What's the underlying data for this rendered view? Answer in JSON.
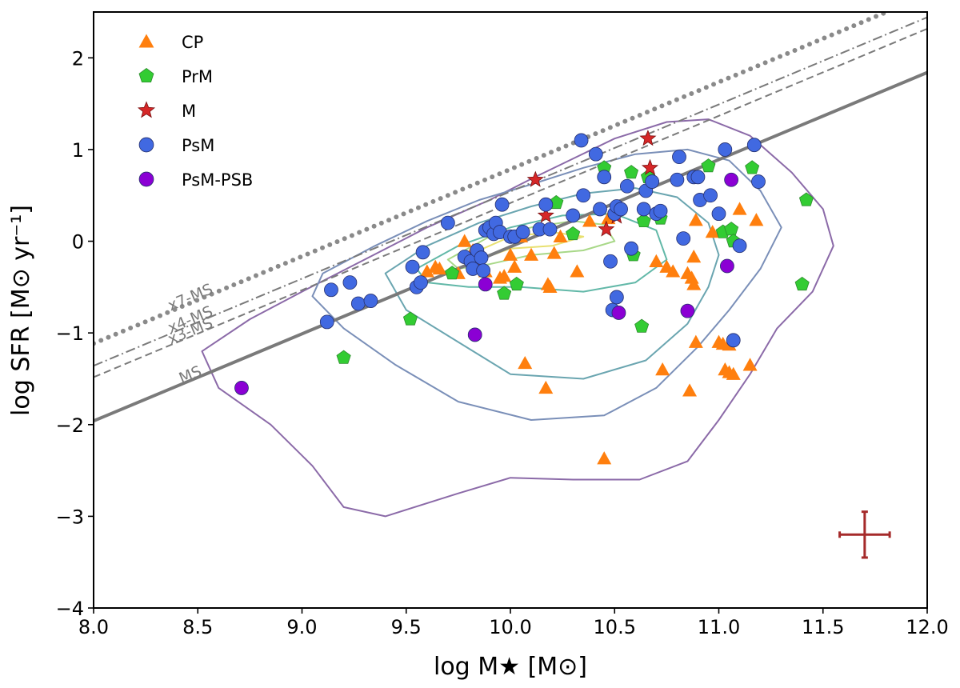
{
  "chart_data": {
    "type": "scatter",
    "xlabel": "log M★ [M⊙]",
    "ylabel": "log SFR [M⊙ yr⁻¹]",
    "xlim": [
      8.0,
      12.0
    ],
    "ylim": [
      -4.0,
      2.5
    ],
    "xticks": [
      8.0,
      8.5,
      9.0,
      9.5,
      10.0,
      10.5,
      11.0,
      11.5,
      12.0
    ],
    "xtick_labels": [
      "8.0",
      "8.5",
      "9.0",
      "9.5",
      "10.0",
      "10.5",
      "11.0",
      "11.5",
      "12.0"
    ],
    "yticks": [
      2,
      1,
      0,
      -1,
      -2,
      -3,
      -4
    ],
    "ytick_labels": [
      "2",
      "1",
      "0",
      "−1",
      "−2",
      "−3",
      "−4"
    ],
    "grid": false,
    "legend_position": "top-left",
    "reference_lines": [
      {
        "name": "MS",
        "label": "MS",
        "offset": 0.0,
        "style": "solid"
      },
      {
        "name": "x3-MS",
        "label": "x3-MS",
        "offset": 0.477,
        "style": "dashed"
      },
      {
        "name": "x4-MS",
        "label": "x4-MS",
        "offset": 0.602,
        "style": "dashdot"
      },
      {
        "name": "x7-MS",
        "label": "x7-MS",
        "offset": 0.845,
        "style": "dotted"
      }
    ],
    "ms_relation": {
      "slope": 0.95,
      "intercept": -9.56,
      "x_start": 8.0,
      "x_end": 12.0
    },
    "error_bar": {
      "x": 11.7,
      "y": -3.2,
      "xerr": 0.12,
      "yerr": 0.25,
      "color": "#a52a2a"
    },
    "contours": [
      {
        "level": 1,
        "color": "#8b6aa8",
        "points": [
          [
            8.52,
            -1.2
          ],
          [
            8.75,
            -0.85
          ],
          [
            9.0,
            -0.55
          ],
          [
            9.3,
            -0.2
          ],
          [
            9.6,
            0.15
          ],
          [
            9.9,
            0.45
          ],
          [
            10.1,
            0.68
          ],
          [
            10.3,
            0.9
          ],
          [
            10.5,
            1.12
          ],
          [
            10.75,
            1.3
          ],
          [
            10.95,
            1.33
          ],
          [
            11.15,
            1.15
          ],
          [
            11.35,
            0.75
          ],
          [
            11.5,
            0.35
          ],
          [
            11.55,
            -0.05
          ],
          [
            11.45,
            -0.55
          ],
          [
            11.28,
            -0.95
          ],
          [
            11.15,
            -1.45
          ],
          [
            11.0,
            -1.95
          ],
          [
            10.85,
            -2.4
          ],
          [
            10.62,
            -2.6
          ],
          [
            10.3,
            -2.6
          ],
          [
            10.0,
            -2.58
          ],
          [
            9.75,
            -2.75
          ],
          [
            9.4,
            -3.0
          ],
          [
            9.2,
            -2.9
          ],
          [
            9.05,
            -2.45
          ],
          [
            8.85,
            -2.0
          ],
          [
            8.6,
            -1.6
          ]
        ]
      },
      {
        "level": 2,
        "color": "#7a8fb8",
        "points": [
          [
            9.1,
            -0.35
          ],
          [
            9.35,
            -0.05
          ],
          [
            9.6,
            0.22
          ],
          [
            9.85,
            0.45
          ],
          [
            10.1,
            0.62
          ],
          [
            10.35,
            0.8
          ],
          [
            10.6,
            0.95
          ],
          [
            10.85,
            1.0
          ],
          [
            11.05,
            0.88
          ],
          [
            11.2,
            0.55
          ],
          [
            11.3,
            0.15
          ],
          [
            11.2,
            -0.3
          ],
          [
            11.05,
            -0.75
          ],
          [
            10.9,
            -1.15
          ],
          [
            10.7,
            -1.6
          ],
          [
            10.45,
            -1.9
          ],
          [
            10.1,
            -1.95
          ],
          [
            9.75,
            -1.75
          ],
          [
            9.45,
            -1.35
          ],
          [
            9.2,
            -0.95
          ],
          [
            9.05,
            -0.6
          ]
        ]
      },
      {
        "level": 3,
        "color": "#6aa5b0",
        "points": [
          [
            9.4,
            -0.35
          ],
          [
            9.6,
            -0.05
          ],
          [
            9.85,
            0.2
          ],
          [
            10.1,
            0.38
          ],
          [
            10.35,
            0.52
          ],
          [
            10.6,
            0.58
          ],
          [
            10.8,
            0.48
          ],
          [
            10.95,
            0.2
          ],
          [
            11.0,
            -0.15
          ],
          [
            10.95,
            -0.5
          ],
          [
            10.85,
            -0.9
          ],
          [
            10.65,
            -1.3
          ],
          [
            10.35,
            -1.5
          ],
          [
            10.0,
            -1.45
          ],
          [
            9.75,
            -1.1
          ],
          [
            9.5,
            -0.75
          ]
        ]
      },
      {
        "level": 4,
        "color": "#62b8a8",
        "points": [
          [
            9.55,
            -0.3
          ],
          [
            9.75,
            -0.05
          ],
          [
            10.0,
            0.15
          ],
          [
            10.25,
            0.28
          ],
          [
            10.5,
            0.3
          ],
          [
            10.7,
            0.12
          ],
          [
            10.75,
            -0.2
          ],
          [
            10.6,
            -0.45
          ],
          [
            10.35,
            -0.55
          ],
          [
            10.05,
            -0.5
          ],
          [
            9.8,
            -0.5
          ],
          [
            9.6,
            -0.45
          ]
        ]
      },
      {
        "level": 5,
        "color": "#a8d888",
        "points": [
          [
            9.7,
            -0.2
          ],
          [
            9.9,
            0.05
          ],
          [
            10.1,
            0.15
          ],
          [
            10.3,
            0.22
          ],
          [
            10.45,
            0.18
          ],
          [
            10.5,
            0.0
          ],
          [
            10.35,
            -0.1
          ],
          [
            10.1,
            -0.15
          ],
          [
            9.9,
            -0.25
          ],
          [
            9.75,
            -0.3
          ]
        ]
      },
      {
        "level": 6,
        "color": "#e8e070",
        "points": [
          [
            9.8,
            -0.15
          ],
          [
            10.0,
            0.05
          ],
          [
            10.2,
            0.1
          ],
          [
            10.35,
            0.05
          ],
          [
            10.2,
            -0.05
          ],
          [
            10.0,
            -0.08
          ],
          [
            9.85,
            -0.2
          ]
        ]
      }
    ],
    "series": [
      {
        "name": "CP",
        "label": "CP",
        "marker": "triangle",
        "color": "#ff7f0e",
        "points": [
          [
            9.6,
            -0.33
          ],
          [
            9.64,
            -0.28
          ],
          [
            9.66,
            -0.3
          ],
          [
            9.75,
            -0.35
          ],
          [
            9.78,
            0.0
          ],
          [
            9.82,
            -0.1
          ],
          [
            9.85,
            -0.22
          ],
          [
            9.88,
            -0.33
          ],
          [
            9.95,
            -0.4
          ],
          [
            9.97,
            -0.38
          ],
          [
            10.0,
            -0.15
          ],
          [
            10.02,
            -0.28
          ],
          [
            10.05,
            0.05
          ],
          [
            10.07,
            -1.33
          ],
          [
            10.1,
            -0.15
          ],
          [
            10.17,
            -1.6
          ],
          [
            10.18,
            -0.47
          ],
          [
            10.19,
            -0.5
          ],
          [
            10.21,
            -0.13
          ],
          [
            10.24,
            0.05
          ],
          [
            10.32,
            -0.33
          ],
          [
            10.38,
            0.22
          ],
          [
            10.45,
            -2.37
          ],
          [
            10.47,
            0.25
          ],
          [
            10.7,
            -0.22
          ],
          [
            10.73,
            -1.4
          ],
          [
            10.75,
            -0.28
          ],
          [
            10.78,
            -0.33
          ],
          [
            10.85,
            -0.35
          ],
          [
            10.86,
            -1.63
          ],
          [
            10.87,
            -0.4
          ],
          [
            10.88,
            -0.47
          ],
          [
            10.88,
            -0.17
          ],
          [
            10.89,
            0.23
          ],
          [
            10.89,
            -1.1
          ],
          [
            10.97,
            0.1
          ],
          [
            11.0,
            -1.1
          ],
          [
            11.02,
            -1.12
          ],
          [
            11.03,
            -1.4
          ],
          [
            11.05,
            -1.13
          ],
          [
            11.05,
            -1.43
          ],
          [
            11.07,
            -1.45
          ],
          [
            11.1,
            0.35
          ],
          [
            11.15,
            -1.35
          ],
          [
            11.18,
            0.23
          ]
        ]
      },
      {
        "name": "PrM",
        "label": "PrM",
        "marker": "pentagon",
        "color": "#33cc33",
        "points": [
          [
            9.2,
            -1.27
          ],
          [
            9.52,
            -0.85
          ],
          [
            9.72,
            -0.35
          ],
          [
            9.82,
            -0.2
          ],
          [
            9.97,
            -0.57
          ],
          [
            10.03,
            -0.47
          ],
          [
            10.22,
            0.42
          ],
          [
            10.3,
            0.08
          ],
          [
            10.45,
            0.8
          ],
          [
            10.58,
            0.75
          ],
          [
            10.59,
            -0.15
          ],
          [
            10.63,
            -0.93
          ],
          [
            10.64,
            0.22
          ],
          [
            10.66,
            0.7
          ],
          [
            10.72,
            0.25
          ],
          [
            10.95,
            0.82
          ],
          [
            11.02,
            0.1
          ],
          [
            11.06,
            0.13
          ],
          [
            11.07,
            0.0
          ],
          [
            11.16,
            0.8
          ],
          [
            11.4,
            -0.47
          ],
          [
            11.42,
            0.45
          ]
        ]
      },
      {
        "name": "M",
        "label": "M",
        "marker": "star",
        "color": "#d62728",
        "points": [
          [
            10.12,
            0.67
          ],
          [
            10.17,
            0.28
          ],
          [
            10.46,
            0.13
          ],
          [
            10.51,
            0.27
          ],
          [
            10.66,
            1.12
          ],
          [
            10.67,
            0.8
          ]
        ]
      },
      {
        "name": "PsM",
        "label": "PsM",
        "marker": "circle",
        "color": "#4169e1",
        "points": [
          [
            9.12,
            -0.88
          ],
          [
            9.14,
            -0.53
          ],
          [
            9.23,
            -0.45
          ],
          [
            9.27,
            -0.68
          ],
          [
            9.33,
            -0.65
          ],
          [
            9.53,
            -0.28
          ],
          [
            9.55,
            -0.5
          ],
          [
            9.57,
            -0.45
          ],
          [
            9.58,
            -0.12
          ],
          [
            9.7,
            0.2
          ],
          [
            9.78,
            -0.17
          ],
          [
            9.81,
            -0.22
          ],
          [
            9.82,
            -0.3
          ],
          [
            9.84,
            -0.1
          ],
          [
            9.86,
            -0.18
          ],
          [
            9.87,
            -0.32
          ],
          [
            9.88,
            0.12
          ],
          [
            9.9,
            0.15
          ],
          [
            9.92,
            0.08
          ],
          [
            9.93,
            0.2
          ],
          [
            9.95,
            0.1
          ],
          [
            9.96,
            0.4
          ],
          [
            10.0,
            0.05
          ],
          [
            10.02,
            0.05
          ],
          [
            10.06,
            0.1
          ],
          [
            10.14,
            0.13
          ],
          [
            10.17,
            0.4
          ],
          [
            10.19,
            0.13
          ],
          [
            10.3,
            0.28
          ],
          [
            10.34,
            1.1
          ],
          [
            10.35,
            0.5
          ],
          [
            10.41,
            0.95
          ],
          [
            10.43,
            0.35
          ],
          [
            10.45,
            0.7
          ],
          [
            10.48,
            -0.22
          ],
          [
            10.49,
            -0.75
          ],
          [
            10.5,
            0.3
          ],
          [
            10.51,
            0.38
          ],
          [
            10.53,
            0.35
          ],
          [
            10.56,
            0.6
          ],
          [
            10.58,
            -0.08
          ],
          [
            10.64,
            0.35
          ],
          [
            10.65,
            0.55
          ],
          [
            10.68,
            0.65
          ],
          [
            10.7,
            0.3
          ],
          [
            10.72,
            0.33
          ],
          [
            10.8,
            0.67
          ],
          [
            10.81,
            0.92
          ],
          [
            10.83,
            0.03
          ],
          [
            10.88,
            0.7
          ],
          [
            10.9,
            0.7
          ],
          [
            10.91,
            0.45
          ],
          [
            10.96,
            0.5
          ],
          [
            11.0,
            0.3
          ],
          [
            11.03,
            1.0
          ],
          [
            11.07,
            -1.08
          ],
          [
            11.1,
            -0.05
          ],
          [
            11.17,
            1.05
          ],
          [
            11.19,
            0.65
          ],
          [
            10.51,
            -0.61
          ]
        ]
      },
      {
        "name": "PsM-PSB",
        "label": "PsM-PSB",
        "marker": "circle",
        "color": "#8b00d4",
        "points": [
          [
            8.71,
            -1.6
          ],
          [
            9.83,
            -1.02
          ],
          [
            9.88,
            -0.47
          ],
          [
            10.52,
            -0.78
          ],
          [
            10.85,
            -0.76
          ],
          [
            11.04,
            -0.27
          ],
          [
            11.06,
            0.67
          ]
        ]
      }
    ]
  }
}
